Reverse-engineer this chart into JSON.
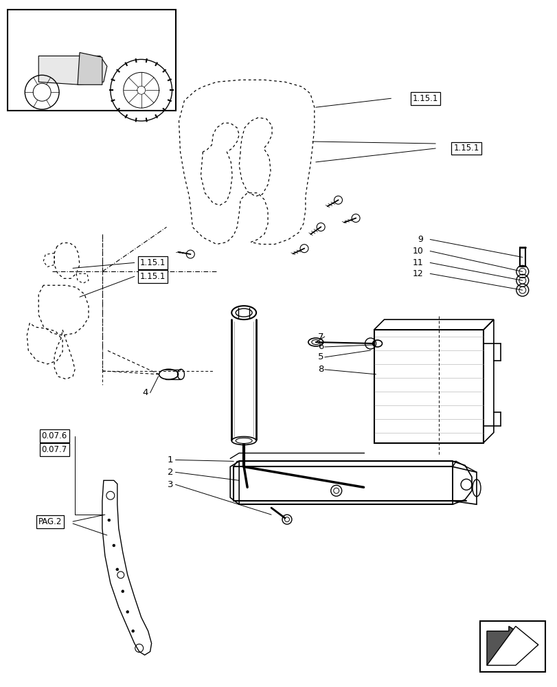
{
  "bg_color": "#ffffff",
  "line_color": "#000000",
  "fig_width": 8.12,
  "fig_height": 10.0,
  "dpi": 100,
  "label_1151_top": "1.15.1",
  "label_1151_right": "1.15.1",
  "label_1151_left1": "1.15.1",
  "label_1151_left2": "1.15.1",
  "label_076": "0.07.6",
  "label_077": "0.07.7",
  "label_pag2": "PAG.2",
  "part_numbers": [
    "1",
    "2",
    "3",
    "4",
    "5",
    "6",
    "7",
    "8",
    "9",
    "10",
    "11",
    "12"
  ]
}
